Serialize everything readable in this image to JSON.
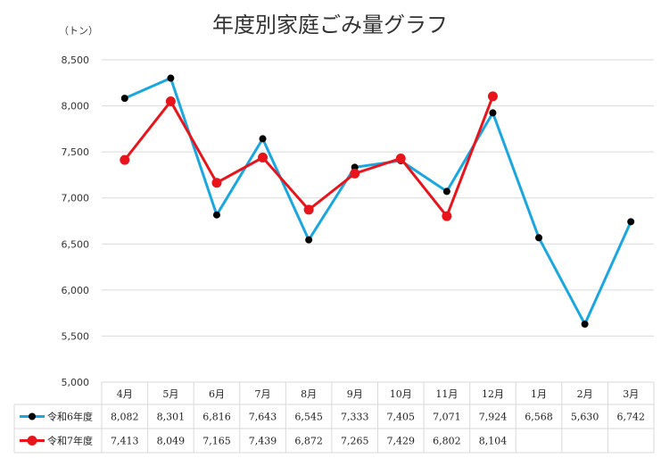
{
  "chart_data": {
    "type": "line",
    "title": "年度別家庭ごみ量グラフ",
    "ylabel": "（トン）",
    "xlabel": "",
    "ylim": [
      5000,
      8500
    ],
    "yticks": [
      5000,
      5500,
      6000,
      6500,
      7000,
      7500,
      8000,
      8500
    ],
    "ytick_labels": [
      "5,000",
      "5,500",
      "6,000",
      "6,500",
      "7,000",
      "7,500",
      "8,000",
      "8,500"
    ],
    "grid": true,
    "legend_position": "bottom-table",
    "categories": [
      "4月",
      "5月",
      "6月",
      "7月",
      "8月",
      "9月",
      "10月",
      "11月",
      "12月",
      "1月",
      "2月",
      "3月"
    ],
    "series": [
      {
        "name": "令和6年度",
        "line_color": "#1aa7e0",
        "marker_color": "#000000",
        "values": [
          8082,
          8301,
          6816,
          7643,
          6545,
          7333,
          7405,
          7071,
          7924,
          6568,
          5630,
          6742
        ],
        "value_labels": [
          "8,082",
          "8,301",
          "6,816",
          "7,643",
          "6,545",
          "7,333",
          "7,405",
          "7,071",
          "7,924",
          "6,568",
          "5,630",
          "6,742"
        ]
      },
      {
        "name": "令和7年度",
        "line_color": "#e8141c",
        "marker_color": "#e8141c",
        "values": [
          7413,
          8049,
          7165,
          7439,
          6872,
          7265,
          7429,
          6802,
          8104,
          null,
          null,
          null
        ],
        "value_labels": [
          "7,413",
          "8,049",
          "7,165",
          "7,439",
          "6,872",
          "7,265",
          "7,429",
          "6,802",
          "8,104",
          "",
          "",
          ""
        ]
      }
    ]
  }
}
